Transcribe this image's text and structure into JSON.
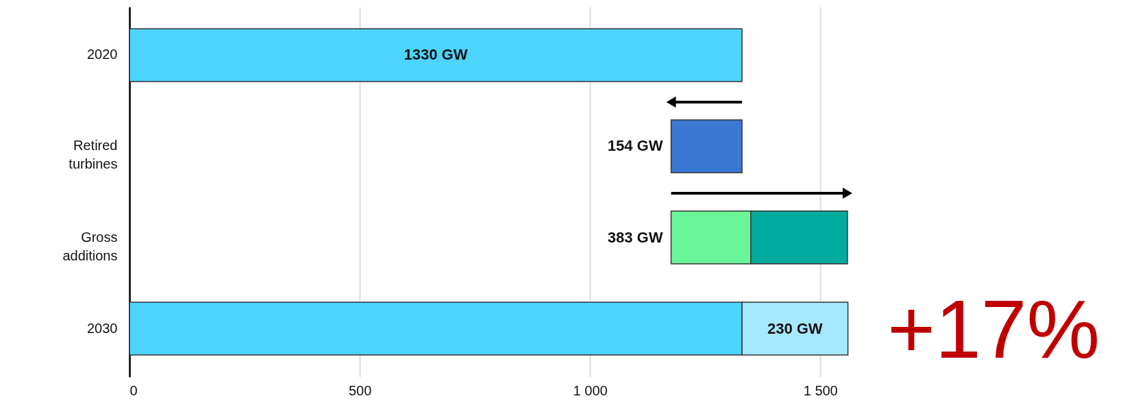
{
  "chart_data": {
    "type": "bar",
    "orientation": "horizontal",
    "categories": [
      "2020",
      "Retired turbines",
      "Gross additions",
      "2030"
    ],
    "series": [
      {
        "color": "#4dd4ff",
        "values": [
          1330,
          null,
          null,
          1330
        ],
        "base": [
          0,
          null,
          null,
          0
        ],
        "value_labels": [
          "1330 GW",
          null,
          null,
          null
        ]
      },
      {
        "color": "#3b78d4",
        "values": [
          null,
          154,
          null,
          null
        ],
        "base": [
          null,
          1176,
          null,
          null
        ]
      },
      {
        "color": "#6af598",
        "values": [
          null,
          null,
          173,
          null
        ],
        "base": [
          null,
          null,
          1176,
          null
        ]
      },
      {
        "color": "#00ab9d",
        "values": [
          null,
          null,
          210,
          null
        ],
        "base": [
          null,
          null,
          1349,
          null
        ]
      },
      {
        "color": "#a6e8ff",
        "values": [
          null,
          null,
          null,
          230
        ],
        "base": [
          null,
          null,
          null,
          1330
        ],
        "value_labels": [
          null,
          null,
          null,
          "230 GW"
        ]
      }
    ],
    "annotations": [
      {
        "text": "154 GW",
        "x": 1176,
        "y": "Retired turbines"
      },
      {
        "text": "383 GW",
        "x": 1176,
        "y": "Gross additions"
      },
      "+17%"
    ],
    "xlim": [
      0,
      1580
    ],
    "xticks": [
      0,
      500,
      {
        "value": 1000,
        "label": "1 000"
      },
      {
        "value": 1500,
        "label": "1 500"
      }
    ],
    "grid": "x"
  }
}
